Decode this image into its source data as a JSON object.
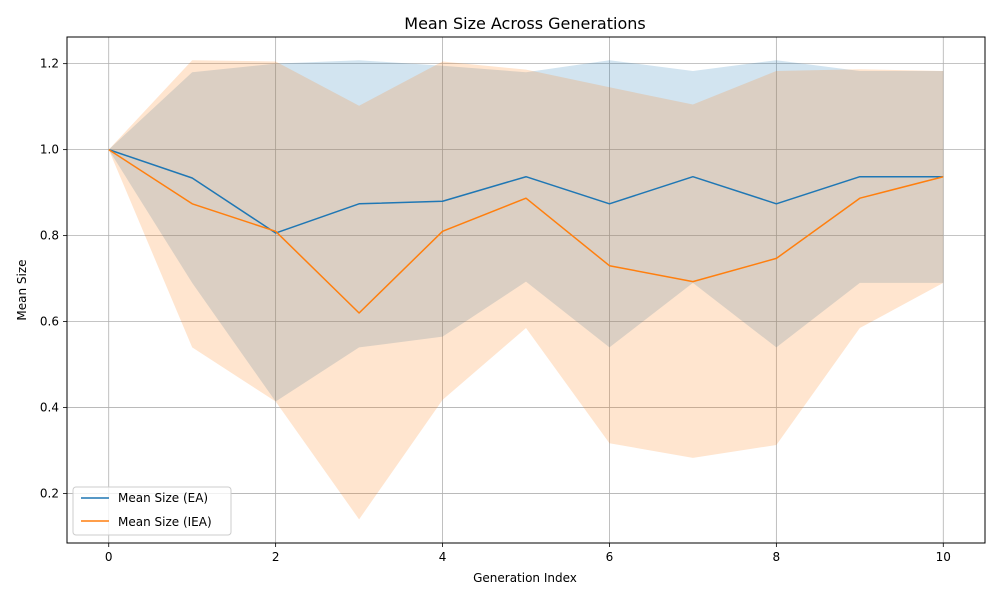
{
  "chart_data": {
    "type": "line",
    "title": "Mean Size Across Generations",
    "xlabel": "Generation Index",
    "ylabel": "Mean Size",
    "xlim": [
      -0.5,
      10.5
    ],
    "ylim": [
      0.085,
      1.262
    ],
    "xticks": [
      0,
      2,
      4,
      6,
      8,
      10
    ],
    "yticks": [
      0.2,
      0.4,
      0.6,
      0.8,
      1.0,
      1.2
    ],
    "grid": true,
    "legend_position": "lower-left",
    "x": [
      0,
      1,
      2,
      3,
      4,
      5,
      6,
      7,
      8,
      9,
      10
    ],
    "series": [
      {
        "name": "Mean Size (EA)",
        "color": "#1f77b4",
        "values": [
          1.0,
          0.934,
          0.806,
          0.874,
          0.88,
          0.937,
          0.874,
          0.937,
          0.874,
          0.937,
          0.937
        ],
        "band_upper": [
          1.0,
          1.18,
          1.2,
          1.208,
          1.195,
          1.18,
          1.208,
          1.183,
          1.208,
          1.183,
          1.183
        ],
        "band_lower": [
          1.0,
          0.69,
          0.414,
          0.54,
          0.565,
          0.693,
          0.54,
          0.69,
          0.54,
          0.69,
          0.69
        ],
        "band_color": "#1f77b4",
        "band_opacity": 0.2
      },
      {
        "name": "Mean Size (IEA)",
        "color": "#ff7f0e",
        "values": [
          1.0,
          0.874,
          0.81,
          0.62,
          0.81,
          0.887,
          0.73,
          0.693,
          0.747,
          0.887,
          0.937
        ],
        "band_upper": [
          1.0,
          1.208,
          1.205,
          1.102,
          1.205,
          1.186,
          1.145,
          1.105,
          1.183,
          1.187,
          1.183
        ],
        "band_lower": [
          1.0,
          0.54,
          0.414,
          0.14,
          0.418,
          0.585,
          0.317,
          0.283,
          0.313,
          0.585,
          0.69
        ],
        "band_color": "#ff7f0e",
        "band_opacity": 0.2
      }
    ]
  }
}
